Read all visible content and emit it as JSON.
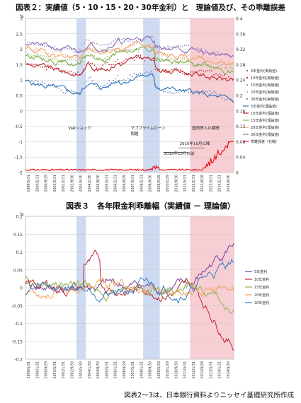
{
  "charts": [
    {
      "type": "line",
      "title": "図表２：実績値（5・10・15・20・30年金利）と　理論値及び、その乖離誤差",
      "y_unit": "%",
      "ylim": [
        -2,
        3
      ],
      "yticks": [
        "3",
        "2.5",
        "2",
        "1.5",
        "1",
        "0.5",
        "0",
        "-0.5",
        "-1",
        "-1.5",
        "-2"
      ],
      "y2lim": [
        0,
        0.4
      ],
      "y2ticks": [
        "0.4",
        "0.36",
        "0.32",
        "0.28",
        "0.24",
        "0.2",
        "0.16",
        "0.12",
        "0.08",
        "0.04",
        "0"
      ],
      "x_labels": [
        "1999/5/31",
        "2000/1/31",
        "2000/9/29",
        "2001/5/31",
        "2002/1/31",
        "2002/9/30",
        "2003/5/30",
        "2004/1/30",
        "2004/9/30",
        "2005/5/31",
        "2006/1/31",
        "2006/9/29",
        "2007/5/31",
        "2008/1/31",
        "2008/9/30",
        "2009/5/29",
        "2010/1/29",
        "2010/9/30",
        "2011/5/31",
        "2012/1/31",
        "2012/9/28",
        "2013/5/31",
        "2014/1/31",
        "2014/9/30"
      ],
      "shaded": [
        {
          "from": 0.245,
          "to": 0.29,
          "color": "#c5d4ef"
        },
        {
          "from": 0.565,
          "to": 0.645,
          "color": "#c5d4ef"
        },
        {
          "from": 0.79,
          "to": 1.0,
          "color": "#f6c6cc"
        }
      ],
      "annotations": [
        {
          "text": "VaRショック",
          "x": 0.205,
          "y": -0.6
        },
        {
          "text": "サブプライムローン",
          "x": 0.505,
          "y": -0.6
        },
        {
          "text": "問題",
          "x": 0.505,
          "y": -0.78
        },
        {
          "text": "国債買入れ期間",
          "x": 0.8,
          "y": -0.6
        },
        {
          "text": "2010年10月以降",
          "x": 0.74,
          "y": -1.1
        },
        {
          "text": "2010年10月以前",
          "x": 0.665,
          "y": -1.43
        }
      ],
      "series": [
        {
          "name": "5年金利(実績値)",
          "color": "#4f7fc0",
          "style": "markers",
          "base": 0.85,
          "amp": 0.45,
          "seed": 3
        },
        {
          "name": "10年金利(実績値)",
          "color": "#b7262c",
          "style": "markers",
          "base": 1.45,
          "amp": 0.4,
          "seed": 7
        },
        {
          "name": "15年金利(実績値)",
          "color": "#8db34f",
          "style": "markers",
          "base": 1.75,
          "amp": 0.38,
          "seed": 11
        },
        {
          "name": "20年金利(実績値)",
          "color": "#f3b081",
          "style": "markers",
          "base": 1.95,
          "amp": 0.35,
          "seed": 13
        },
        {
          "name": "30年金利(実績値)",
          "color": "#9a7fbf",
          "style": "markers",
          "base": 2.15,
          "amp": 0.33,
          "seed": 17
        },
        {
          "name": "5年金利(理論値)",
          "color": "#2d6fb8",
          "style": "line",
          "base": 0.8,
          "amp": 0.45,
          "seed": 5
        },
        {
          "name": "10年金利(理論値)",
          "color": "#c0262c",
          "style": "line",
          "base": 1.4,
          "amp": 0.4,
          "seed": 9
        },
        {
          "name": "15年金利(理論値)",
          "color": "#7fae48",
          "style": "line",
          "base": 1.7,
          "amp": 0.38,
          "seed": 15
        },
        {
          "name": "20年金利(理論値)",
          "color": "#f2a06a",
          "style": "line",
          "base": 1.9,
          "amp": 0.35,
          "seed": 19
        },
        {
          "name": "30年金利(理論値)",
          "color": "#8b70b6",
          "style": "line",
          "base": 2.1,
          "amp": 0.33,
          "seed": 21
        }
      ],
      "error_series": {
        "name": "乖離誤差（右軸）",
        "color": "#e8131b"
      },
      "legend": "right"
    },
    {
      "type": "line",
      "title": "図表３　各年限金利乖離幅（実績値 － 理論値）",
      "y_unit": "%",
      "ylim": [
        -0.2,
        0.2
      ],
      "yticks": [
        "0.2",
        "0.15",
        "0.1",
        "0.05",
        "0",
        "-0.05",
        "-0.1",
        "-0.15",
        "-0.2"
      ],
      "x_labels": [
        "1999/5/31",
        "2000/1/31",
        "2000/9/29",
        "2001/5/31",
        "2002/1/31",
        "2002/9/30",
        "2003/5/30",
        "2004/1/30",
        "2004/9/30",
        "2005/5/31",
        "2006/1/31",
        "2006/9/29",
        "2007/5/31",
        "2008/1/31",
        "2008/9/30",
        "2009/5/29",
        "2010/1/29",
        "2010/9/30",
        "2011/5/31",
        "2012/1/31",
        "2012/9/28",
        "2013/5/31",
        "2014/1/31",
        "2014/9/30"
      ],
      "shaded": [
        {
          "from": 0.245,
          "to": 0.29,
          "color": "#c5d4ef"
        },
        {
          "from": 0.565,
          "to": 0.645,
          "color": "#c5d4ef"
        },
        {
          "from": 0.79,
          "to": 1.0,
          "color": "#f6c6cc"
        }
      ],
      "series": [
        {
          "name": "5年金利",
          "color": "#7b3f98"
        },
        {
          "name": "10年金利",
          "color": "#c0262c"
        },
        {
          "name": "15年金利",
          "color": "#8db34f"
        },
        {
          "name": "20年金利",
          "color": "#f0a65a"
        },
        {
          "name": "30年金利",
          "color": "#3e7bc4"
        }
      ],
      "legend": "right"
    }
  ],
  "source_note": "図表2～3は、日本銀行資料よりニッセイ基礎研究所作成"
}
